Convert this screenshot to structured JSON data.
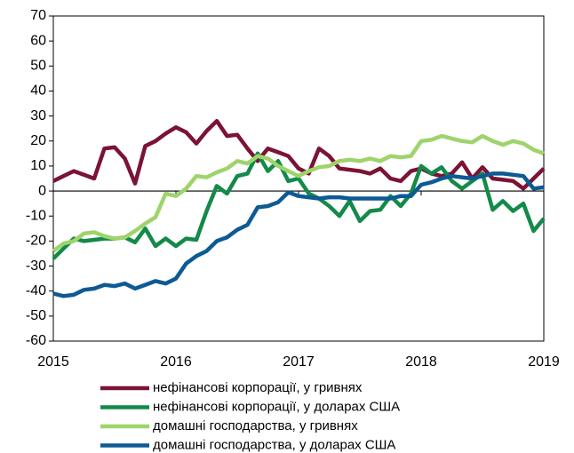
{
  "chart_data": {
    "type": "line",
    "x": [
      2015,
      2015.083,
      2015.167,
      2015.25,
      2015.333,
      2015.417,
      2015.5,
      2015.583,
      2015.667,
      2015.75,
      2015.833,
      2015.917,
      2016,
      2016.083,
      2016.167,
      2016.25,
      2016.333,
      2016.417,
      2016.5,
      2016.583,
      2016.667,
      2016.75,
      2016.833,
      2016.917,
      2017,
      2017.083,
      2017.167,
      2017.25,
      2017.333,
      2017.417,
      2017.5,
      2017.583,
      2017.667,
      2017.75,
      2017.833,
      2017.917,
      2018,
      2018.083,
      2018.167,
      2018.25,
      2018.333,
      2018.417,
      2018.5,
      2018.583,
      2018.667,
      2018.75,
      2018.833,
      2018.917,
      2019
    ],
    "series": [
      {
        "name": "нефінансові корпорації, у гривнях",
        "color": "#7b1335",
        "values": [
          4,
          6,
          8,
          6.5,
          5,
          17,
          17.5,
          13,
          3,
          18,
          20,
          23,
          25.5,
          23.5,
          19,
          24,
          28,
          22,
          22.5,
          17,
          12,
          17,
          15.5,
          14,
          9,
          7,
          17,
          14,
          9,
          8.5,
          8,
          7,
          9,
          5,
          4,
          8,
          9,
          7,
          6,
          7,
          11.5,
          5,
          9.5,
          5,
          4.5,
          4,
          1,
          5,
          9
        ]
      },
      {
        "name": "нефінансові корпорації, у доларах США",
        "color": "#138a4a",
        "values": [
          -27,
          -23,
          -19,
          -20,
          -19.5,
          -19,
          -19,
          -18.5,
          -20.5,
          -15,
          -22,
          -19,
          -22,
          -19,
          -19.5,
          -8,
          2,
          -1,
          6,
          7,
          15,
          8,
          12,
          4,
          5,
          -1,
          -3,
          -6,
          -10,
          -4,
          -12,
          -8,
          -7.5,
          -2,
          -6,
          -1,
          10,
          7,
          9.5,
          4,
          1,
          4,
          7,
          -7.5,
          -4,
          -8,
          -5,
          -16,
          -11
        ]
      },
      {
        "name": "домашні господарства, у гривнях",
        "color": "#9ed46b",
        "values": [
          -24,
          -21,
          -20,
          -17,
          -16.5,
          -18,
          -19,
          -18.5,
          -16,
          -13,
          -10.5,
          -1,
          -2,
          1,
          6,
          5.5,
          7.5,
          9,
          12,
          11,
          14,
          13,
          10,
          8,
          6,
          8,
          9.5,
          10,
          12,
          12.5,
          12,
          13,
          12,
          14,
          13.5,
          14,
          20,
          20.5,
          22,
          21,
          20,
          19.5,
          22,
          20,
          18.5,
          20,
          19,
          16.5,
          15
        ]
      },
      {
        "name": "домашні господарства, у доларах США",
        "color": "#0d5a94",
        "values": [
          -41,
          -42,
          -41.5,
          -39.5,
          -39,
          -37.5,
          -38,
          -37,
          -39,
          -37.5,
          -36,
          -37,
          -35,
          -29,
          -26,
          -24,
          -20,
          -18.5,
          -15.5,
          -13.5,
          -6.5,
          -6,
          -4.5,
          -0.5,
          -2,
          -2.5,
          -3,
          -2.5,
          -2.5,
          -3,
          -3,
          -3,
          -3,
          -3,
          -2,
          -2,
          2.5,
          3.5,
          5,
          6,
          5.5,
          5,
          6,
          7,
          7,
          6.5,
          6,
          1,
          1.5
        ]
      }
    ],
    "xlim": [
      2015,
      2019
    ],
    "xticks": [
      2015,
      2016,
      2017,
      2018,
      2019
    ],
    "ylim": [
      -60,
      70
    ],
    "yticks": [
      -60,
      -50,
      -40,
      -30,
      -20,
      -10,
      0,
      10,
      20,
      30,
      40,
      50,
      60,
      70
    ]
  }
}
